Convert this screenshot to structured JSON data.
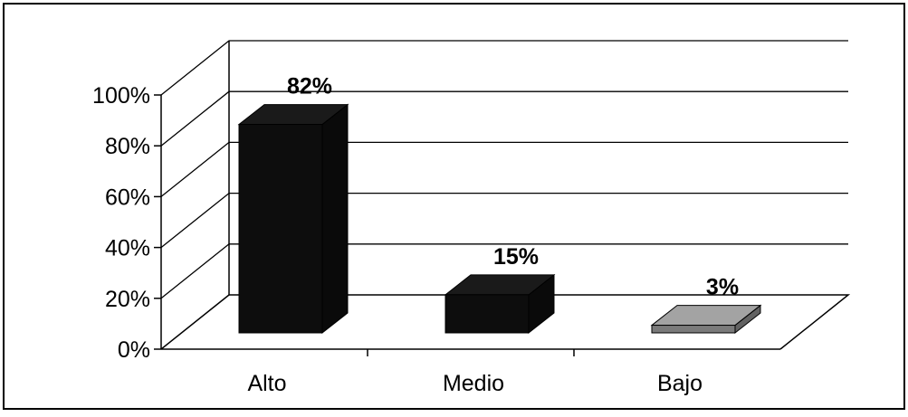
{
  "chart_data": {
    "type": "bar",
    "style": "3d-column",
    "categories": [
      "Alto",
      "Medio",
      "Bajo"
    ],
    "values": [
      82,
      15,
      3
    ],
    "data_labels": [
      "82%",
      "15%",
      "3%"
    ],
    "y_ticks": [
      "0%",
      "20%",
      "40%",
      "60%",
      "80%",
      "100%"
    ],
    "ylim": [
      0,
      100
    ],
    "grid": true,
    "legend": "none",
    "title": "",
    "xlabel": "",
    "ylabel": "",
    "colors": {
      "bar_fill": [
        "#0d0d0d",
        "#0d0d0d",
        "#7a7a7a"
      ],
      "axis": "#000000",
      "grid": "#000000",
      "frame": "#000000",
      "background": "#ffffff"
    }
  }
}
